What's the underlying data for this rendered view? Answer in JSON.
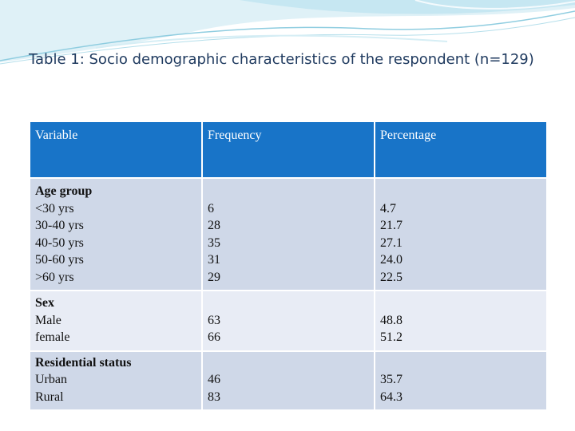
{
  "title": "Table 1: Socio demographic characteristics of the respondent (n=129)",
  "header": {
    "variable": "Variable",
    "frequency": "Frequency",
    "percentage": "Percentage"
  },
  "rows": [
    {
      "group": "Age group",
      "categories": [
        "<30 yrs",
        "30-40 yrs",
        "40-50 yrs",
        "50-60 yrs",
        ">60 yrs"
      ],
      "frequency": [
        "6",
        "28",
        "35",
        "31",
        "29"
      ],
      "percentage": [
        "4.7",
        "21.7",
        "27.1",
        "24.0",
        "22.5"
      ]
    },
    {
      "group": "Sex",
      "categories": [
        "Male",
        "female"
      ],
      "frequency": [
        "63",
        "66"
      ],
      "percentage": [
        "48.8",
        "51.2"
      ]
    },
    {
      "group": "Residential status",
      "categories": [
        "Urban",
        "Rural"
      ],
      "frequency": [
        "46",
        "83"
      ],
      "percentage": [
        "35.7",
        "64.3"
      ]
    }
  ],
  "colors": {
    "header_bg": "#1874c8",
    "row_dark": "#cfd8e8",
    "row_light": "#e8ecf5",
    "title": "#1f3a5f"
  }
}
